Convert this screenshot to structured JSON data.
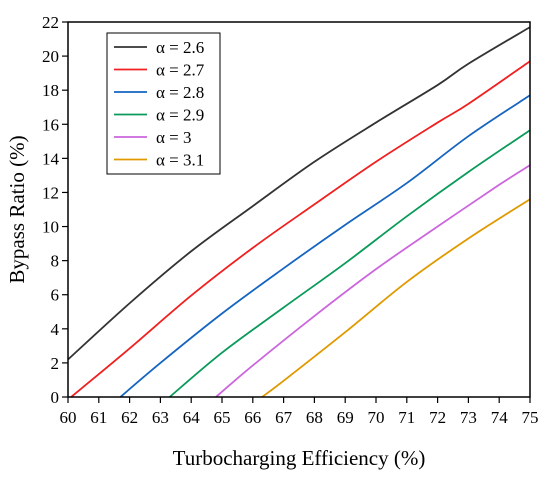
{
  "chart_data": {
    "type": "line",
    "title": "",
    "xlabel": "Turbocharging Efficiency (%)",
    "ylabel": "Bypass Ratio (%)",
    "xlim": [
      60,
      75
    ],
    "ylim": [
      0,
      22
    ],
    "xticks": [
      60,
      61,
      62,
      63,
      64,
      65,
      66,
      67,
      68,
      69,
      70,
      71,
      72,
      73,
      74,
      75
    ],
    "yticks": [
      0,
      2,
      4,
      6,
      8,
      10,
      12,
      14,
      16,
      18,
      20,
      22
    ],
    "grid": false,
    "legend_position": "top-left",
    "series": [
      {
        "name": "α = 2.6",
        "color": "#333333",
        "x": [
          60,
          62,
          64,
          66,
          68,
          70,
          72,
          73,
          75
        ],
        "y": [
          2.2,
          5.5,
          8.55,
          11.2,
          13.8,
          16.1,
          18.3,
          19.55,
          21.7
        ]
      },
      {
        "name": "α = 2.7",
        "color": "#f02020",
        "x": [
          60.1,
          62,
          64,
          66,
          68,
          70,
          72,
          73,
          75
        ],
        "y": [
          0,
          2.85,
          5.95,
          8.75,
          11.3,
          13.8,
          16.1,
          17.2,
          19.7
        ]
      },
      {
        "name": "α = 2.8",
        "color": "#1565c0",
        "x": [
          61.7,
          63,
          65,
          67,
          69,
          71,
          73,
          75
        ],
        "y": [
          0,
          2.0,
          4.9,
          7.55,
          10.1,
          12.55,
          15.3,
          17.7
        ]
      },
      {
        "name": "α = 2.9",
        "color": "#0a9a5a",
        "x": [
          63.3,
          65,
          67,
          69,
          71,
          73,
          75
        ],
        "y": [
          0,
          2.6,
          5.25,
          7.85,
          10.6,
          13.2,
          15.65
        ]
      },
      {
        "name": "α = 3",
        "color": "#cc66dd",
        "x": [
          64.8,
          66,
          68,
          70,
          72,
          74,
          75
        ],
        "y": [
          0,
          1.85,
          4.75,
          7.5,
          10.0,
          12.45,
          13.6
        ]
      },
      {
        "name": "α = 3.1",
        "color": "#e09a00",
        "x": [
          66.3,
          67,
          69,
          71,
          73,
          75
        ],
        "y": [
          0,
          0.95,
          3.8,
          6.75,
          9.3,
          11.6
        ]
      }
    ]
  }
}
